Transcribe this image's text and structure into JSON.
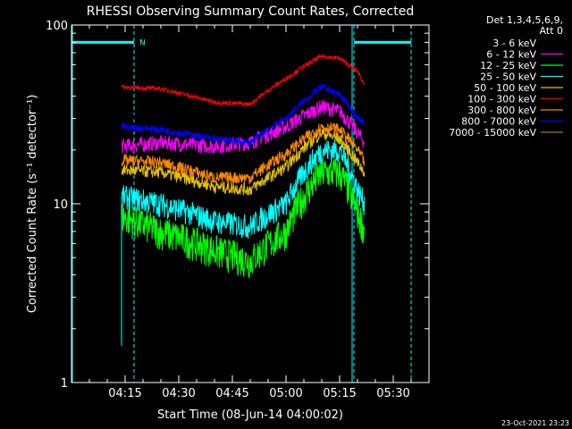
{
  "chart_data": {
    "type": "line",
    "title": "RHESSI Observing Summary Count Rates, Corrected",
    "xlabel": "Start Time (08-Jun-14 04:00:02)",
    "ylabel": "Corrected Count Rate (s⁻¹ detector⁻¹)",
    "ylim": [
      1,
      100
    ],
    "yscale": "log",
    "xlim_minutes": [
      0,
      100
    ],
    "x_ticks": [
      "04:15",
      "04:30",
      "04:45",
      "05:00",
      "05:15",
      "05:30"
    ],
    "y_ticks": [
      "1",
      "10",
      "100"
    ],
    "legend_header": [
      "Det 1,3,4,5,6,9,",
      "Att 0"
    ],
    "legend_position": "right",
    "timestamp": "23-Oct-2021 23:23",
    "night_marker_label": "N",
    "markers": {
      "dashed_lines_minutes": [
        17.5,
        79,
        95
      ],
      "solid_lines_minutes": [
        0,
        78.5
      ]
    },
    "series": [
      {
        "name": "3 - 6 keV",
        "color": "#000000",
        "x": [
          14,
          25,
          40,
          50,
          60,
          70,
          75,
          80,
          82
        ],
        "values": [
          30,
          30,
          30,
          30,
          31,
          39,
          36,
          30,
          28
        ]
      },
      {
        "name": "6 - 12 keV",
        "color": "#ff00ff",
        "x": [
          14,
          25,
          40,
          50,
          60,
          70,
          75,
          80,
          82
        ],
        "values": [
          21,
          22,
          21,
          22,
          27,
          35,
          33,
          25,
          22
        ]
      },
      {
        "name": "12 - 25 keV",
        "color": "#00ff00",
        "x": [
          14,
          25,
          40,
          50,
          60,
          70,
          75,
          80,
          82
        ],
        "values": [
          8.5,
          7,
          5.5,
          4.8,
          7,
          15,
          15,
          9,
          7
        ]
      },
      {
        "name": "25 - 50 keV",
        "color": "#00ffff",
        "x": [
          14,
          25,
          40,
          50,
          60,
          70,
          75,
          80,
          82
        ],
        "values": [
          11,
          10,
          8,
          7.5,
          10,
          20,
          20,
          12,
          10
        ]
      },
      {
        "name": "50 - 100 keV",
        "color": "#e5c000",
        "x": [
          14,
          25,
          40,
          50,
          60,
          70,
          75,
          80,
          82
        ],
        "values": [
          15.5,
          15,
          12.5,
          12,
          16,
          25,
          23,
          17,
          15
        ]
      },
      {
        "name": "100 - 300 keV",
        "color": "#ff0000",
        "x": [
          14,
          25,
          40,
          50,
          60,
          70,
          75,
          80,
          82
        ],
        "values": [
          45,
          44,
          37,
          36,
          50,
          67,
          65,
          55,
          46
        ]
      },
      {
        "name": "300 - 800 keV",
        "color": "#ff8800",
        "x": [
          14,
          25,
          40,
          50,
          60,
          70,
          75,
          80,
          82
        ],
        "values": [
          17.5,
          17,
          14,
          14,
          19,
          27,
          26,
          20,
          17
        ]
      },
      {
        "name": "800 - 7000 keV",
        "color": "#0000ff",
        "x": [
          14,
          25,
          40,
          50,
          60,
          70,
          75,
          80,
          82
        ],
        "values": [
          27,
          26,
          23,
          22,
          30,
          45,
          41,
          30,
          29
        ]
      },
      {
        "name": "7000 - 15000 keV",
        "color": "#a08000",
        "x": [
          14,
          25,
          40,
          50,
          60,
          70,
          75,
          80,
          82
        ],
        "values": [
          null,
          null,
          null,
          null,
          null,
          null,
          null,
          null,
          null
        ]
      }
    ]
  }
}
